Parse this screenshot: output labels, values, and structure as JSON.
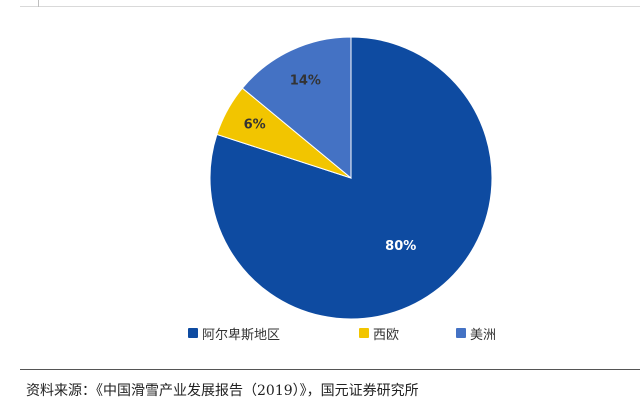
{
  "chart_data": {
    "type": "pie",
    "title": "",
    "slices": [
      {
        "label": "阿尔卑斯地区",
        "value": 80,
        "display": "80%",
        "color": "#0E4BA1",
        "label_color": "#ffffff"
      },
      {
        "label": "西欧",
        "value": 6,
        "display": "6%",
        "color": "#F2C500",
        "label_color": "#333333"
      },
      {
        "label": "美洲",
        "value": 14,
        "display": "14%",
        "color": "#4472C4",
        "label_color": "#333333"
      }
    ],
    "start_angle_deg": 0,
    "direction": "clockwise",
    "legend_position": "bottom"
  },
  "source_note": "资料来源：《中国滑雪产业发展报告（2019）》，国元证券研究所"
}
